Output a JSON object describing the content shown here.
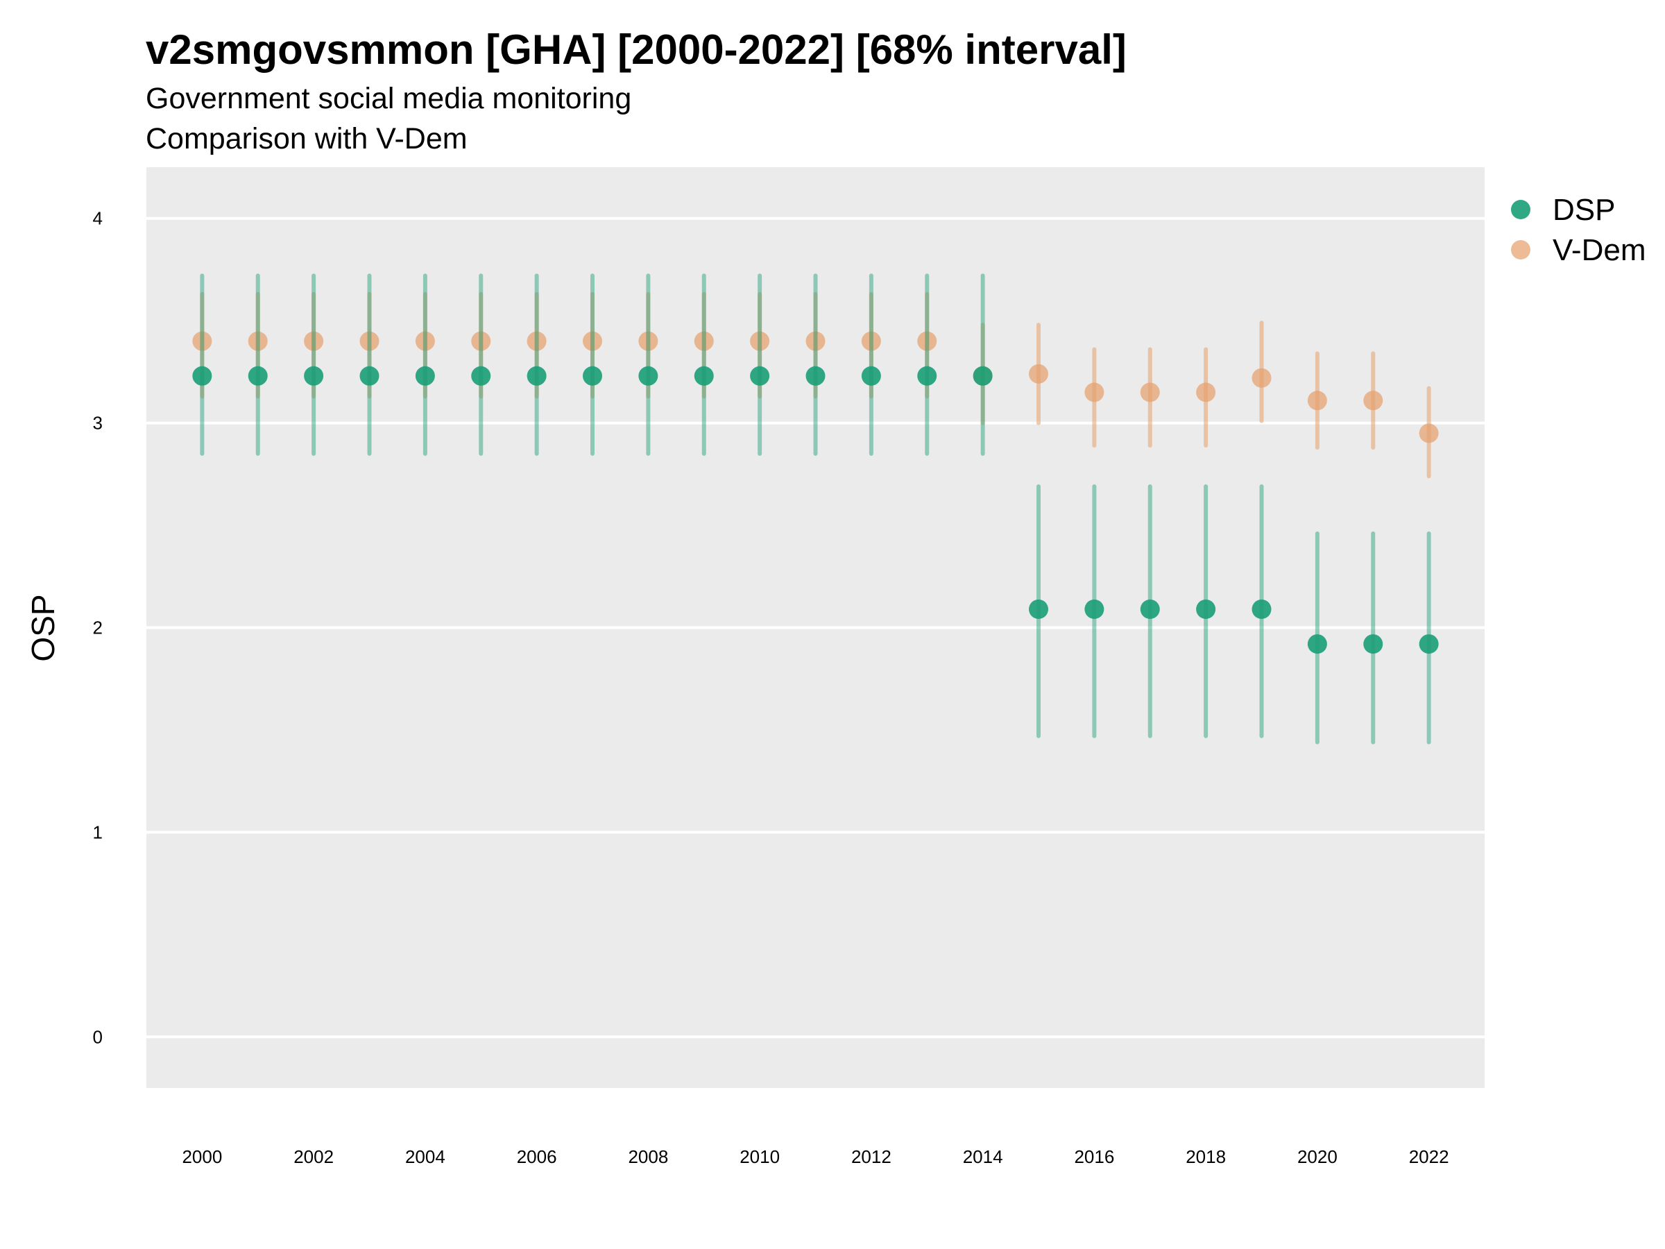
{
  "chart_data": {
    "type": "scatter",
    "title": "v2smgovsmmon [GHA] [2000-2022] [68% interval]",
    "subtitle": [
      "Government social media monitoring",
      "Comparison with V-Dem"
    ],
    "xlabel": "",
    "ylabel": "OSP",
    "xlim": [
      1999,
      2023
    ],
    "ylim": [
      -0.25,
      4.25
    ],
    "x_ticks": [
      "2000",
      "2002",
      "2004",
      "2006",
      "2008",
      "2010",
      "2012",
      "2014",
      "2016",
      "2018",
      "2020",
      "2022"
    ],
    "y_ticks": [
      "0",
      "1",
      "2",
      "3",
      "4"
    ],
    "grid": "horizontal",
    "legend_position": "right",
    "years": [
      2000,
      2001,
      2002,
      2003,
      2004,
      2005,
      2006,
      2007,
      2008,
      2009,
      2010,
      2011,
      2012,
      2013,
      2014,
      2015,
      2016,
      2017,
      2018,
      2019,
      2020,
      2021,
      2022
    ],
    "series": [
      {
        "name": "V-Dem",
        "color": "#e6a06b",
        "values": [
          3.4,
          3.4,
          3.4,
          3.4,
          3.4,
          3.4,
          3.4,
          3.4,
          3.4,
          3.4,
          3.4,
          3.4,
          3.4,
          3.4,
          3.23,
          3.24,
          3.15,
          3.15,
          3.15,
          3.22,
          3.11,
          3.11,
          2.95
        ],
        "lower": [
          3.13,
          3.13,
          3.13,
          3.13,
          3.13,
          3.13,
          3.13,
          3.13,
          3.13,
          3.13,
          3.13,
          3.13,
          3.13,
          3.13,
          3.0,
          3.0,
          2.89,
          2.89,
          2.89,
          3.01,
          2.88,
          2.88,
          2.74
        ],
        "upper": [
          3.63,
          3.63,
          3.63,
          3.63,
          3.63,
          3.63,
          3.63,
          3.63,
          3.63,
          3.63,
          3.63,
          3.63,
          3.63,
          3.63,
          3.48,
          3.48,
          3.36,
          3.36,
          3.36,
          3.49,
          3.34,
          3.34,
          3.17
        ]
      },
      {
        "name": "DSP",
        "color": "#1b9e77",
        "values": [
          3.23,
          3.23,
          3.23,
          3.23,
          3.23,
          3.23,
          3.23,
          3.23,
          3.23,
          3.23,
          3.23,
          3.23,
          3.23,
          3.23,
          3.23,
          2.09,
          2.09,
          2.09,
          2.09,
          2.09,
          1.92,
          1.92,
          1.92
        ],
        "lower": [
          2.85,
          2.85,
          2.85,
          2.85,
          2.85,
          2.85,
          2.85,
          2.85,
          2.85,
          2.85,
          2.85,
          2.85,
          2.85,
          2.85,
          2.85,
          1.47,
          1.47,
          1.47,
          1.47,
          1.47,
          1.44,
          1.44,
          1.44
        ],
        "upper": [
          3.72,
          3.72,
          3.72,
          3.72,
          3.72,
          3.72,
          3.72,
          3.72,
          3.72,
          3.72,
          3.72,
          3.72,
          3.72,
          3.72,
          3.72,
          2.69,
          2.69,
          2.69,
          2.69,
          2.69,
          2.46,
          2.46,
          2.46
        ]
      }
    ],
    "legend": [
      {
        "label": "DSP",
        "color": "#1b9e77"
      },
      {
        "label": "V-Dem",
        "color": "#e6a06b"
      }
    ]
  }
}
